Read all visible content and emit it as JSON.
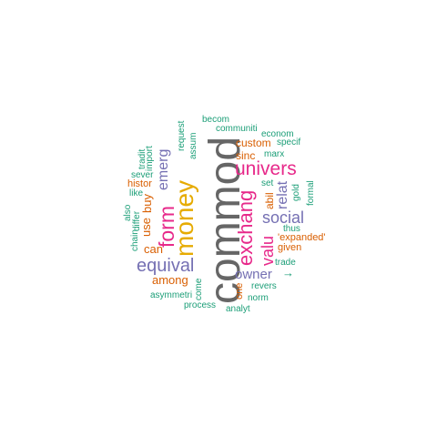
{
  "colors": {
    "green": "#1b9e77",
    "orange": "#d95f02",
    "purple": "#7570b3",
    "pink": "#e7298a",
    "lime": "#66a61e",
    "gold": "#e6ab02",
    "gray": "#666666"
  },
  "words": [
    {
      "text": "commod",
      "color": "gray"
    },
    {
      "text": "money",
      "color": "gold"
    },
    {
      "text": "form",
      "color": "pink"
    },
    {
      "text": "exchang",
      "color": "pink"
    },
    {
      "text": "univers",
      "color": "pink"
    },
    {
      "text": "equival",
      "color": "purple"
    },
    {
      "text": "social",
      "color": "purple"
    },
    {
      "text": "valu",
      "color": "pink"
    },
    {
      "text": "emerg",
      "color": "purple"
    },
    {
      "text": "relat",
      "color": "purple"
    },
    {
      "text": "owner",
      "color": "purple"
    },
    {
      "text": "→",
      "color": "green"
    },
    {
      "text": "buy",
      "color": "orange"
    },
    {
      "text": "use",
      "color": "orange"
    },
    {
      "text": "can",
      "color": "orange"
    },
    {
      "text": "among",
      "color": "orange"
    },
    {
      "text": "custom",
      "color": "orange"
    },
    {
      "text": "sinc",
      "color": "orange"
    },
    {
      "text": "abil",
      "color": "orange"
    },
    {
      "text": "given",
      "color": "orange"
    },
    {
      "text": "'expanded'",
      "color": "orange"
    },
    {
      "text": "one",
      "color": "orange"
    },
    {
      "text": "histor",
      "color": "orange"
    },
    {
      "text": "becom",
      "color": "green"
    },
    {
      "text": "communiti",
      "color": "green"
    },
    {
      "text": "econom",
      "color": "green"
    },
    {
      "text": "specif",
      "color": "green"
    },
    {
      "text": "marx",
      "color": "green"
    },
    {
      "text": "request",
      "color": "green"
    },
    {
      "text": "assum",
      "color": "green"
    },
    {
      "text": "import",
      "color": "green"
    },
    {
      "text": "tradit",
      "color": "green"
    },
    {
      "text": "sever",
      "color": "green"
    },
    {
      "text": "like",
      "color": "green"
    },
    {
      "text": "differ",
      "color": "green"
    },
    {
      "text": "chain",
      "color": "green"
    },
    {
      "text": "also",
      "color": "green"
    },
    {
      "text": "set",
      "color": "green"
    },
    {
      "text": "gold",
      "color": "green"
    },
    {
      "text": "formal",
      "color": "green"
    },
    {
      "text": "thus",
      "color": "green"
    },
    {
      "text": "trade",
      "color": "green"
    },
    {
      "text": "revers",
      "color": "green"
    },
    {
      "text": "norm",
      "color": "green"
    },
    {
      "text": "asymmetri",
      "color": "green"
    },
    {
      "text": "come",
      "color": "green"
    },
    {
      "text": "process",
      "color": "green"
    },
    {
      "text": "analyt",
      "color": "green"
    }
  ]
}
